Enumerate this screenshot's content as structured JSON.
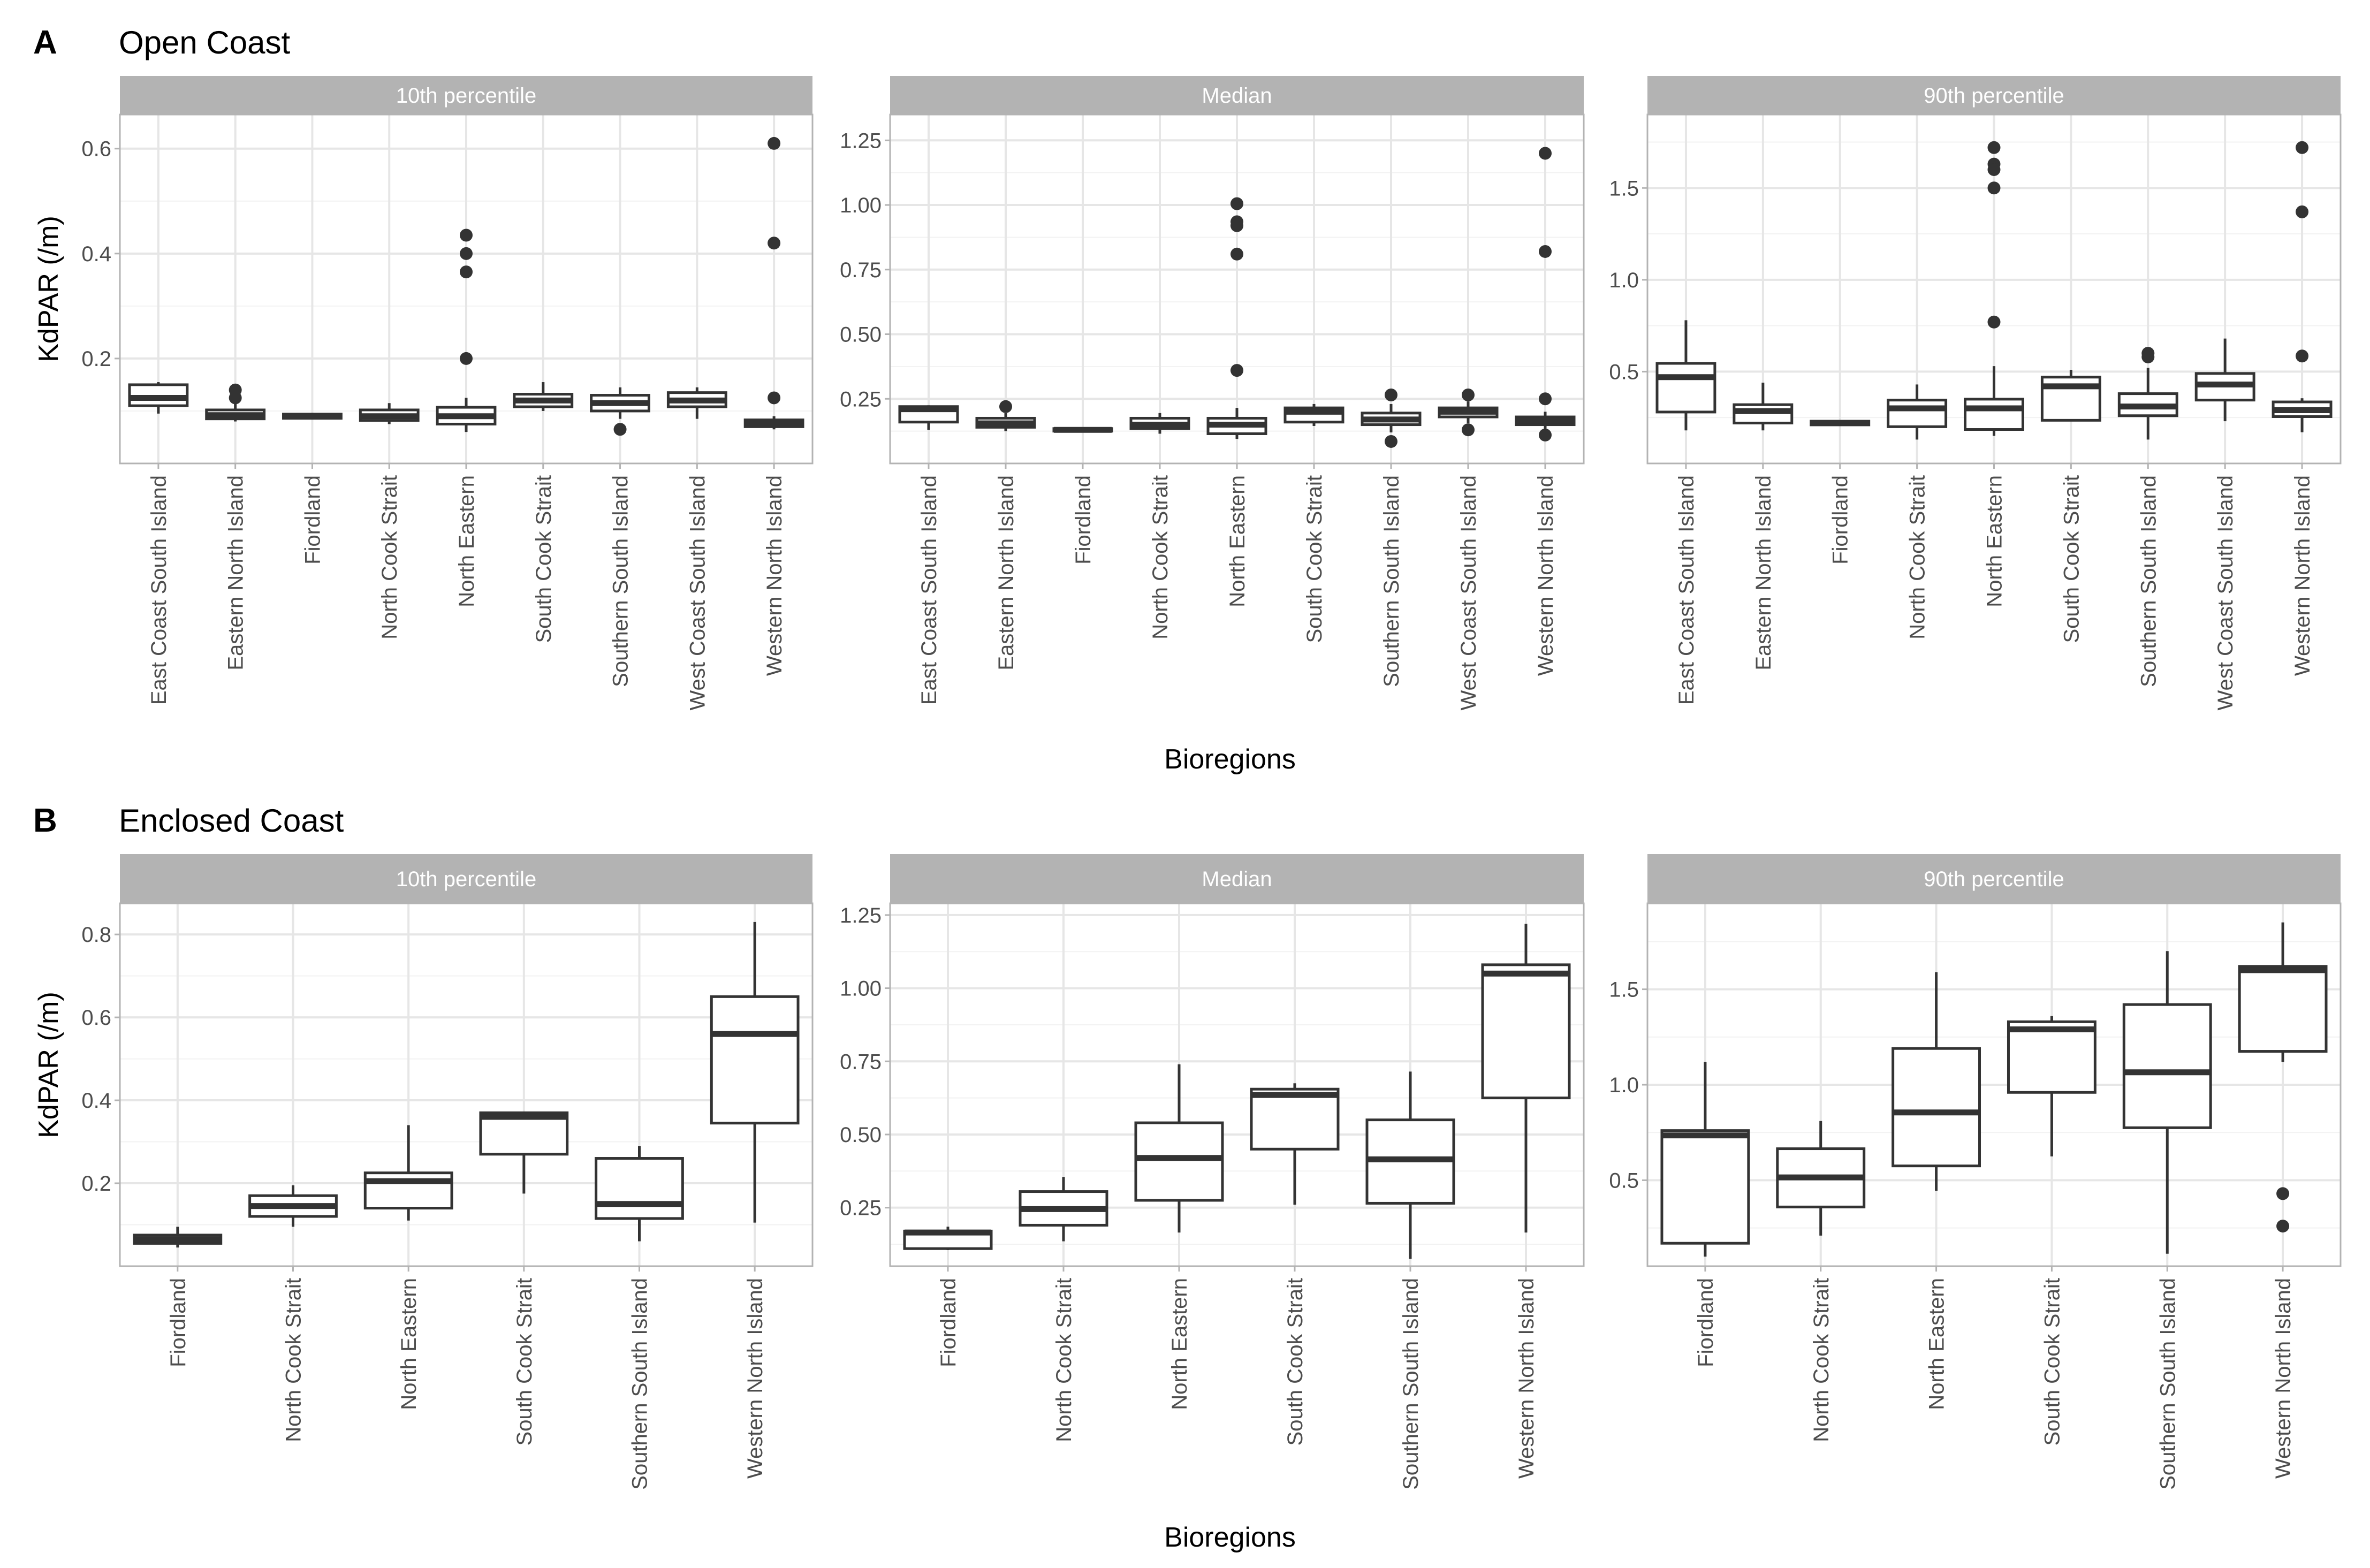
{
  "figure": {
    "panels": [
      {
        "letter": "A",
        "title": "Open Coast",
        "xlabel": "Bioregions",
        "ylabel": "KdPAR (/m)"
      },
      {
        "letter": "B",
        "title": "Enclosed Coast",
        "xlabel": "Bioregions",
        "ylabel": "KdPAR (/m)"
      }
    ]
  },
  "chart_data": [
    {
      "type": "box",
      "panel": "A",
      "facet": "10th percentile",
      "categories": [
        "East Coast South Island",
        "Eastern North Island",
        "Fiordland",
        "North Cook Strait",
        "North Eastern",
        "South Cook Strait",
        "Southern South Island",
        "West Coast South Island",
        "Western North Island"
      ],
      "ylim": [
        0.0,
        0.665
      ],
      "yticks": [
        0.2,
        0.4,
        0.6
      ],
      "ytick_labels": [
        "0.2",
        "0.4",
        "0.6"
      ],
      "boxes": [
        {
          "q1": 0.11,
          "median": 0.125,
          "q3": 0.15,
          "lo": 0.095,
          "hi": 0.155,
          "outliers": []
        },
        {
          "q1": 0.085,
          "median": 0.092,
          "q3": 0.102,
          "lo": 0.08,
          "hi": 0.115,
          "outliers": [
            0.14,
            0.125
          ]
        },
        {
          "q1": 0.086,
          "median": 0.09,
          "q3": 0.094,
          "lo": 0.085,
          "hi": 0.095,
          "outliers": []
        },
        {
          "q1": 0.082,
          "median": 0.09,
          "q3": 0.102,
          "lo": 0.075,
          "hi": 0.115,
          "outliers": []
        },
        {
          "q1": 0.075,
          "median": 0.09,
          "q3": 0.107,
          "lo": 0.06,
          "hi": 0.125,
          "outliers": [
            0.435,
            0.4,
            0.365,
            0.2
          ]
        },
        {
          "q1": 0.108,
          "median": 0.12,
          "q3": 0.132,
          "lo": 0.1,
          "hi": 0.155,
          "outliers": []
        },
        {
          "q1": 0.1,
          "median": 0.115,
          "q3": 0.13,
          "lo": 0.085,
          "hi": 0.145,
          "outliers": [
            0.065
          ]
        },
        {
          "q1": 0.108,
          "median": 0.12,
          "q3": 0.135,
          "lo": 0.085,
          "hi": 0.145,
          "outliers": []
        },
        {
          "q1": 0.07,
          "median": 0.077,
          "q3": 0.083,
          "lo": 0.065,
          "hi": 0.09,
          "outliers": [
            0.61,
            0.42,
            0.125
          ]
        }
      ]
    },
    {
      "type": "box",
      "panel": "A",
      "facet": "Median",
      "categories": [
        "East Coast South Island",
        "Eastern North Island",
        "Fiordland",
        "North Cook Strait",
        "North Eastern",
        "South Cook Strait",
        "Southern South Island",
        "West Coast South Island",
        "Western North Island"
      ],
      "ylim": [
        0.0,
        1.35
      ],
      "yticks": [
        0.25,
        0.5,
        0.75,
        1.0,
        1.25
      ],
      "ytick_labels": [
        "0.25",
        "0.50",
        "0.75",
        "1.00",
        "1.25"
      ],
      "boxes": [
        {
          "q1": 0.16,
          "median": 0.21,
          "q3": 0.22,
          "lo": 0.13,
          "hi": 0.225,
          "outliers": []
        },
        {
          "q1": 0.14,
          "median": 0.155,
          "q3": 0.175,
          "lo": 0.125,
          "hi": 0.195,
          "outliers": [
            0.22
          ]
        },
        {
          "q1": 0.125,
          "median": 0.13,
          "q3": 0.135,
          "lo": 0.122,
          "hi": 0.138,
          "outliers": []
        },
        {
          "q1": 0.135,
          "median": 0.15,
          "q3": 0.175,
          "lo": 0.115,
          "hi": 0.195,
          "outliers": []
        },
        {
          "q1": 0.115,
          "median": 0.15,
          "q3": 0.175,
          "lo": 0.095,
          "hi": 0.215,
          "outliers": [
            1.005,
            0.935,
            0.92,
            0.81,
            0.36
          ]
        },
        {
          "q1": 0.16,
          "median": 0.2,
          "q3": 0.215,
          "lo": 0.145,
          "hi": 0.23,
          "outliers": []
        },
        {
          "q1": 0.15,
          "median": 0.17,
          "q3": 0.195,
          "lo": 0.12,
          "hi": 0.23,
          "outliers": [
            0.265,
            0.085
          ]
        },
        {
          "q1": 0.18,
          "median": 0.2,
          "q3": 0.215,
          "lo": 0.155,
          "hi": 0.24,
          "outliers": [
            0.265,
            0.13
          ]
        },
        {
          "q1": 0.15,
          "median": 0.165,
          "q3": 0.18,
          "lo": 0.13,
          "hi": 0.2,
          "outliers": [
            1.2,
            0.82,
            0.25,
            0.11
          ]
        }
      ]
    },
    {
      "type": "box",
      "panel": "A",
      "facet": "90th percentile",
      "categories": [
        "East Coast South Island",
        "Eastern North Island",
        "Fiordland",
        "North Cook Strait",
        "North Eastern",
        "South Cook Strait",
        "Southern South Island",
        "West Coast South Island",
        "Western North Island"
      ],
      "ylim": [
        0.0,
        1.9
      ],
      "yticks": [
        0.5,
        1.0,
        1.5
      ],
      "ytick_labels": [
        "0.5",
        "1.0",
        "1.5"
      ],
      "boxes": [
        {
          "q1": 0.28,
          "median": 0.47,
          "q3": 0.545,
          "lo": 0.18,
          "hi": 0.78,
          "outliers": []
        },
        {
          "q1": 0.22,
          "median": 0.285,
          "q3": 0.32,
          "lo": 0.18,
          "hi": 0.44,
          "outliers": []
        },
        {
          "q1": 0.21,
          "median": 0.22,
          "q3": 0.23,
          "lo": 0.205,
          "hi": 0.235,
          "outliers": []
        },
        {
          "q1": 0.2,
          "median": 0.3,
          "q3": 0.345,
          "lo": 0.13,
          "hi": 0.43,
          "outliers": []
        },
        {
          "q1": 0.185,
          "median": 0.3,
          "q3": 0.35,
          "lo": 0.15,
          "hi": 0.53,
          "outliers": [
            1.72,
            1.63,
            1.6,
            1.5,
            0.77
          ]
        },
        {
          "q1": 0.235,
          "median": 0.42,
          "q3": 0.47,
          "lo": 0.23,
          "hi": 0.51,
          "outliers": []
        },
        {
          "q1": 0.26,
          "median": 0.31,
          "q3": 0.38,
          "lo": 0.13,
          "hi": 0.52,
          "outliers": [
            0.6,
            0.58
          ]
        },
        {
          "q1": 0.345,
          "median": 0.43,
          "q3": 0.49,
          "lo": 0.23,
          "hi": 0.68,
          "outliers": []
        },
        {
          "q1": 0.255,
          "median": 0.29,
          "q3": 0.335,
          "lo": 0.17,
          "hi": 0.355,
          "outliers": [
            1.72,
            1.37,
            0.585
          ]
        }
      ]
    },
    {
      "type": "box",
      "panel": "B",
      "facet": "10th percentile",
      "categories": [
        "Fiordland",
        "North Cook Strait",
        "North Eastern",
        "South Cook Strait",
        "Southern South Island",
        "Western North Island"
      ],
      "ylim": [
        0.0,
        0.875
      ],
      "yticks": [
        0.2,
        0.4,
        0.6,
        0.8
      ],
      "ytick_labels": [
        "0.2",
        "0.4",
        "0.6",
        "0.8"
      ],
      "boxes": [
        {
          "q1": 0.055,
          "median": 0.065,
          "q3": 0.075,
          "lo": 0.045,
          "hi": 0.095,
          "outliers": []
        },
        {
          "q1": 0.12,
          "median": 0.145,
          "q3": 0.17,
          "lo": 0.095,
          "hi": 0.195,
          "outliers": []
        },
        {
          "q1": 0.14,
          "median": 0.205,
          "q3": 0.225,
          "lo": 0.11,
          "hi": 0.34,
          "outliers": []
        },
        {
          "q1": 0.27,
          "median": 0.36,
          "q3": 0.37,
          "lo": 0.175,
          "hi": 0.37,
          "outliers": []
        },
        {
          "q1": 0.115,
          "median": 0.15,
          "q3": 0.26,
          "lo": 0.06,
          "hi": 0.29,
          "outliers": []
        },
        {
          "q1": 0.345,
          "median": 0.56,
          "q3": 0.65,
          "lo": 0.105,
          "hi": 0.83,
          "outliers": []
        }
      ]
    },
    {
      "type": "box",
      "panel": "B",
      "facet": "Median",
      "categories": [
        "Fiordland",
        "North Cook Strait",
        "North Eastern",
        "South Cook Strait",
        "Southern South Island",
        "Western North Island"
      ],
      "ylim": [
        0.05,
        1.29
      ],
      "yticks": [
        0.25,
        0.5,
        0.75,
        1.0,
        1.25
      ],
      "ytick_labels": [
        "0.25",
        "0.50",
        "0.75",
        "1.00",
        "1.25"
      ],
      "boxes": [
        {
          "q1": 0.11,
          "median": 0.165,
          "q3": 0.17,
          "lo": 0.105,
          "hi": 0.185,
          "outliers": []
        },
        {
          "q1": 0.19,
          "median": 0.245,
          "q3": 0.305,
          "lo": 0.135,
          "hi": 0.355,
          "outliers": []
        },
        {
          "q1": 0.275,
          "median": 0.42,
          "q3": 0.54,
          "lo": 0.165,
          "hi": 0.74,
          "outliers": []
        },
        {
          "q1": 0.45,
          "median": 0.635,
          "q3": 0.655,
          "lo": 0.26,
          "hi": 0.675,
          "outliers": []
        },
        {
          "q1": 0.265,
          "median": 0.415,
          "q3": 0.55,
          "lo": 0.075,
          "hi": 0.715,
          "outliers": []
        },
        {
          "q1": 0.625,
          "median": 1.05,
          "q3": 1.08,
          "lo": 0.165,
          "hi": 1.22,
          "outliers": []
        }
      ]
    },
    {
      "type": "box",
      "panel": "B",
      "facet": "90th percentile",
      "categories": [
        "Fiordland",
        "North Cook Strait",
        "North Eastern",
        "South Cook Strait",
        "Southern South Island",
        "Western North Island"
      ],
      "ylim": [
        0.05,
        1.95
      ],
      "yticks": [
        0.5,
        1.0,
        1.5
      ],
      "ytick_labels": [
        "0.5",
        "1.0",
        "1.5"
      ],
      "boxes": [
        {
          "q1": 0.17,
          "median": 0.735,
          "q3": 0.76,
          "lo": 0.1,
          "hi": 1.12,
          "outliers": []
        },
        {
          "q1": 0.36,
          "median": 0.515,
          "q3": 0.665,
          "lo": 0.21,
          "hi": 0.81,
          "outliers": []
        },
        {
          "q1": 0.575,
          "median": 0.855,
          "q3": 1.19,
          "lo": 0.445,
          "hi": 1.59,
          "outliers": []
        },
        {
          "q1": 0.96,
          "median": 1.29,
          "q3": 1.33,
          "lo": 0.625,
          "hi": 1.36,
          "outliers": []
        },
        {
          "q1": 0.775,
          "median": 1.065,
          "q3": 1.42,
          "lo": 0.115,
          "hi": 1.7,
          "outliers": []
        },
        {
          "q1": 1.175,
          "median": 1.6,
          "q3": 1.62,
          "lo": 1.12,
          "hi": 1.85,
          "outliers": [
            0.43,
            0.26
          ]
        }
      ]
    }
  ]
}
